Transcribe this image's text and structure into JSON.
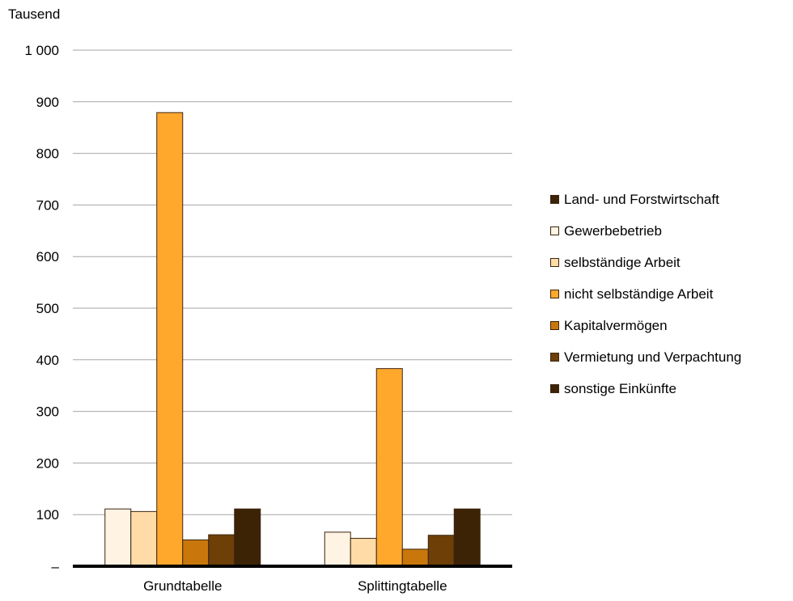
{
  "chart_data": {
    "type": "bar",
    "unit_label": "Tausend",
    "categories": [
      "Grundtabelle",
      "Splittingtabelle"
    ],
    "ylim": [
      0,
      1000
    ],
    "yticks": [
      0,
      100,
      200,
      300,
      400,
      500,
      600,
      700,
      800,
      900,
      1000
    ],
    "ytick_labels": [
      "–",
      "100",
      "200",
      "300",
      "400",
      "500",
      "600",
      "700",
      "800",
      "900",
      "1 000"
    ],
    "grid": true,
    "legend_position": "right",
    "legend_entries": [
      {
        "name": "Land- und Forstwirtschaft",
        "color": "#3d2306"
      },
      {
        "name": "Gewerbebetrieb",
        "color": "#fff3e3"
      },
      {
        "name": "selbständige Arbeit",
        "color": "#ffdba8"
      },
      {
        "name": "nicht selbständige Arbeit",
        "color": "#ffa82c"
      },
      {
        "name": "Kapitalvermögen",
        "color": "#c9770b"
      },
      {
        "name": "Vermietung und Verpachtung",
        "color": "#6e3f07"
      },
      {
        "name": "sonstige Einkünfte",
        "color": "#3d2306"
      }
    ],
    "series": [
      {
        "name": "Gewerbebetrieb",
        "color": "#fff3e3",
        "values": [
          111,
          66
        ]
      },
      {
        "name": "selbständige Arbeit",
        "color": "#ffdba8",
        "values": [
          106,
          54
        ]
      },
      {
        "name": "nicht selbständige Arbeit",
        "color": "#ffa82c",
        "values": [
          879,
          383
        ]
      },
      {
        "name": "Kapitalvermögen",
        "color": "#c9770b",
        "values": [
          51,
          33
        ]
      },
      {
        "name": "Vermietung und Verpachtung",
        "color": "#6e3f07",
        "values": [
          61,
          60
        ]
      },
      {
        "name": "sonstige Einkünfte",
        "color": "#3d2306",
        "values": [
          111,
          111
        ]
      }
    ]
  }
}
